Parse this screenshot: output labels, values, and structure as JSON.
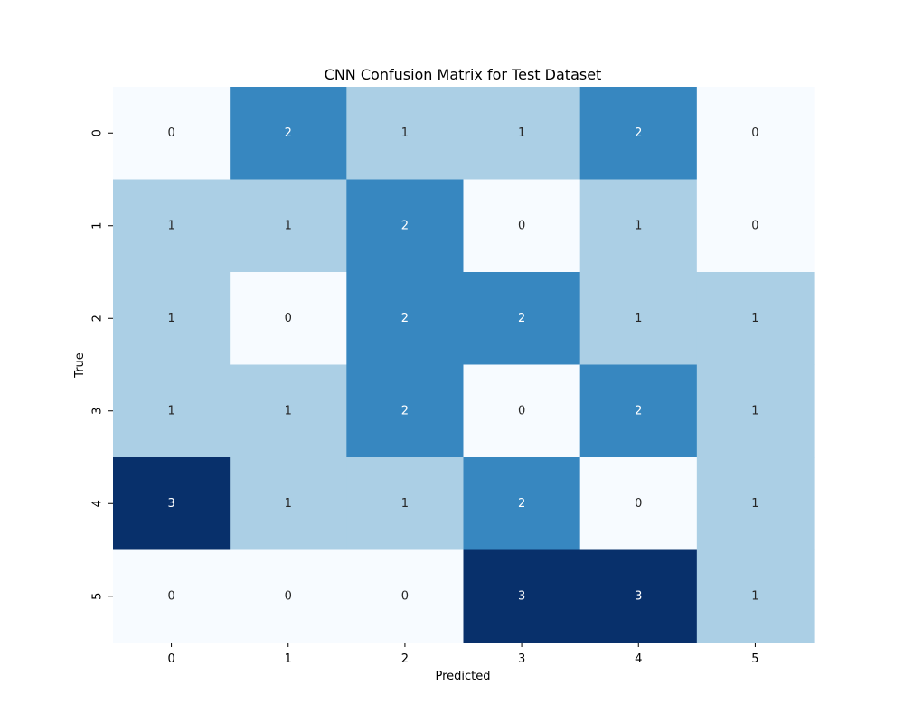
{
  "chart_data": {
    "type": "heatmap",
    "title": "CNN Confusion Matrix for Test Dataset",
    "xlabel": "Predicted",
    "ylabel": "True",
    "x_categories": [
      "0",
      "1",
      "2",
      "3",
      "4",
      "5"
    ],
    "y_categories": [
      "0",
      "1",
      "2",
      "3",
      "4",
      "5"
    ],
    "values": [
      [
        0,
        2,
        1,
        1,
        2,
        0
      ],
      [
        1,
        1,
        2,
        0,
        1,
        0
      ],
      [
        1,
        0,
        2,
        2,
        1,
        1
      ],
      [
        1,
        1,
        2,
        0,
        2,
        1
      ],
      [
        3,
        1,
        1,
        2,
        0,
        1
      ],
      [
        0,
        0,
        0,
        3,
        3,
        1
      ]
    ],
    "colormap": "Blues",
    "colors": {
      "0": "#f7fbff",
      "1": "#abcfe5",
      "2": "#3787c0",
      "3": "#08306b"
    },
    "text_colors": {
      "light": "#262626",
      "dark": "#ffffff"
    },
    "value_range": [
      0,
      3
    ],
    "colorbar": false,
    "grid": false
  }
}
